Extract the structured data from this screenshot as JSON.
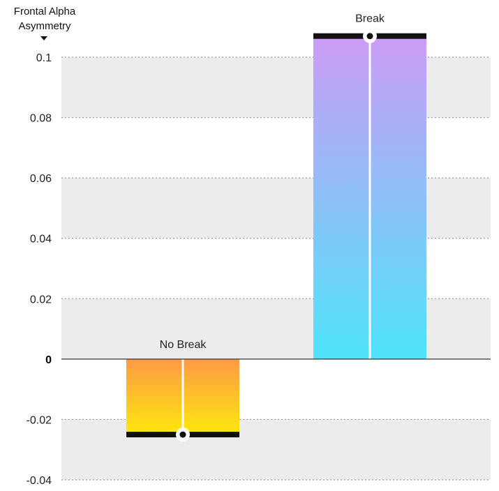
{
  "chart_data": {
    "type": "bar",
    "ylabel": "Frontal Alpha Asymmetry",
    "ylim": [
      -0.04,
      0.1
    ],
    "yticks": [
      0.1,
      0.08,
      0.06,
      0.04,
      0.02,
      0,
      -0.02,
      -0.04
    ],
    "ytick_labels": [
      "0.1",
      "0.08",
      "0.06",
      "0.04",
      "0.02",
      "0",
      "-0.02",
      "-0.04"
    ],
    "grid": true,
    "categories": [
      "No Break",
      "Break"
    ],
    "values": [
      -0.025,
      0.107
    ],
    "colors": {
      "No Break": [
        "#ff9a45",
        "#fde80e"
      ],
      "Break": [
        "#cc9cf7",
        "#4fe4fa"
      ]
    }
  }
}
